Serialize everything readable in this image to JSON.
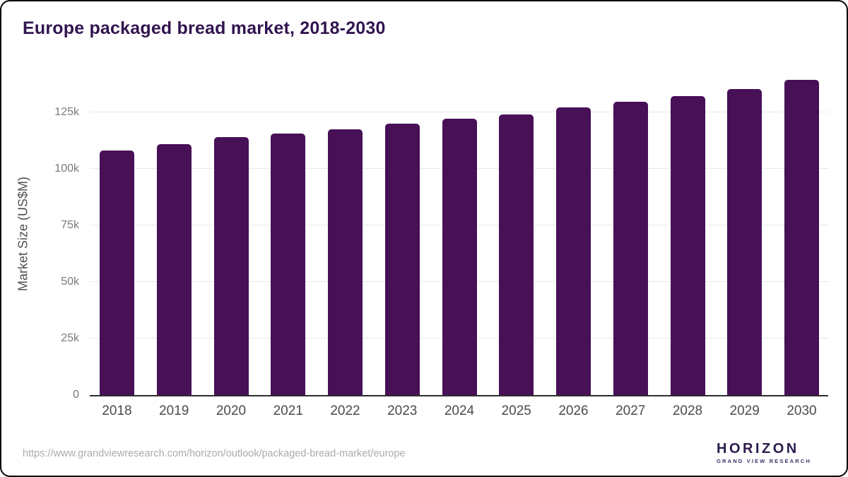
{
  "title": "Europe packaged bread market, 2018-2030",
  "chart_data": {
    "type": "bar",
    "title": "Europe packaged bread market, 2018-2030",
    "categories": [
      "2018",
      "2019",
      "2020",
      "2021",
      "2022",
      "2023",
      "2024",
      "2025",
      "2026",
      "2027",
      "2028",
      "2029",
      "2030"
    ],
    "values": [
      108700,
      111500,
      114500,
      116100,
      118100,
      120400,
      122600,
      124700,
      127700,
      130300,
      132900,
      135900,
      139900
    ],
    "xlabel": "",
    "ylabel": "Market Size (US$M)",
    "ylim": [
      0,
      143750
    ],
    "yticks": [
      {
        "value": 0,
        "label": "0"
      },
      {
        "value": 25000,
        "label": "25k"
      },
      {
        "value": 50000,
        "label": "50k"
      },
      {
        "value": 75000,
        "label": "75k"
      },
      {
        "value": 100000,
        "label": "100k"
      },
      {
        "value": 125000,
        "label": "125k"
      }
    ],
    "grid": true,
    "legend": false,
    "bar_color": "#471057"
  },
  "colors": {
    "title_text": "#321450",
    "bar": "#471057",
    "axis_line": "#2e2e2e",
    "gridline": "#e8e8ec",
    "y_tick_text": "#7a7a7a",
    "x_tick_text": "#4b4b4b",
    "logo_purple": "#2b1b47",
    "logo_blue": "#5bc8f0"
  },
  "footer": {
    "source_url": "https://www.grandviewresearch.com/horizon/outlook/packaged-bread-market/europe",
    "logo": {
      "brand": "HORIZON",
      "sub_brand": "GRAND VIEW RESEARCH"
    }
  }
}
